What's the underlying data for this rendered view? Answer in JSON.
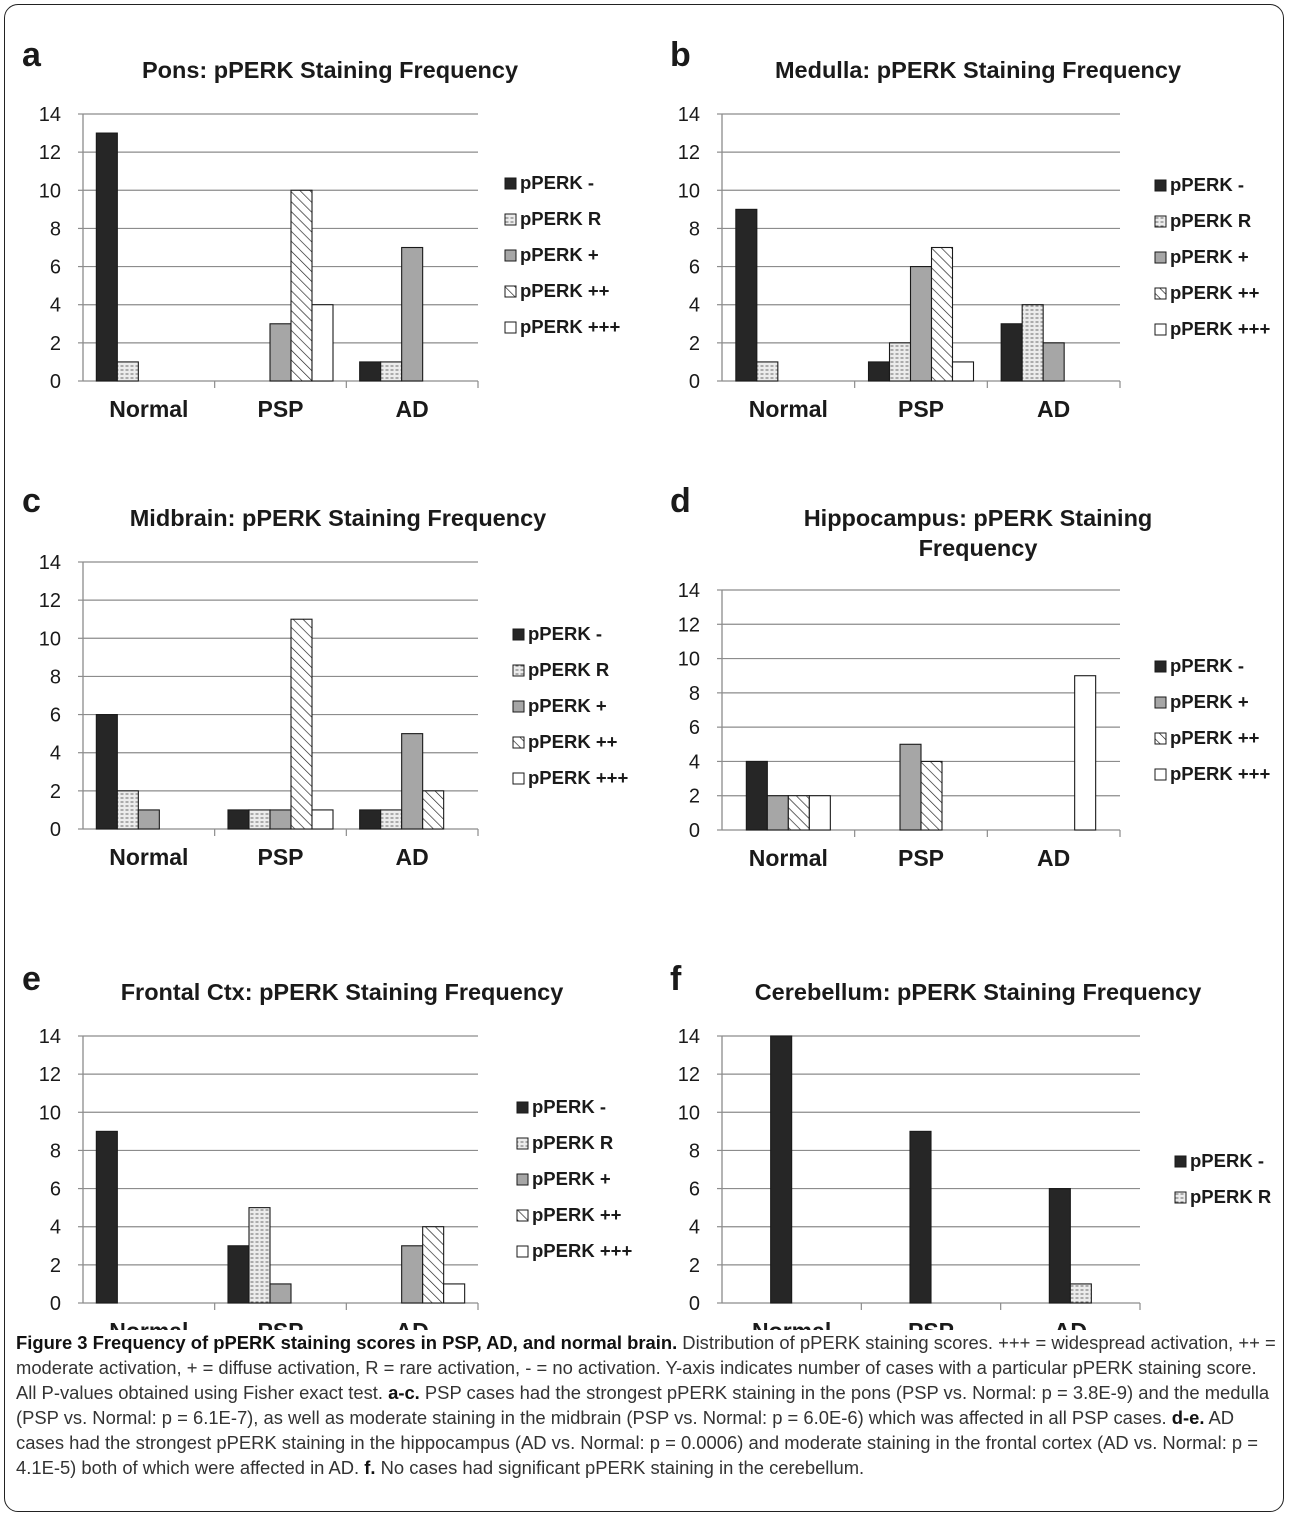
{
  "colors": {
    "neg": "#262626",
    "rare_fill": "#ececec",
    "plus": "#a6a6a6",
    "plusplus_fill": "#ffffff",
    "plusplusplus": "#ffffff",
    "grid": "#8c8c8c",
    "stroke": "#1a1a1a"
  },
  "series_styles": {
    "pPERK -": "solid-dark",
    "pPERK R": "dotted-light",
    "pPERK +": "solid-gray",
    "pPERK ++": "diagonal-hatch",
    "pPERK +++": "white"
  },
  "chart_data": [
    {
      "panel": "a",
      "type": "bar",
      "title": "Pons: pPERK Staining Frequency",
      "categories": [
        "Normal",
        "PSP",
        "AD"
      ],
      "ylim": [
        0,
        14
      ],
      "yticks": [
        "0",
        "2",
        "4",
        "6",
        "8",
        "10",
        "12",
        "14"
      ],
      "grid": true,
      "legend_position": "right",
      "series": [
        {
          "name": "pPERK -",
          "values": [
            13,
            0,
            1
          ]
        },
        {
          "name": "pPERK R",
          "values": [
            1,
            0,
            1
          ]
        },
        {
          "name": "pPERK +",
          "values": [
            0,
            3,
            7
          ]
        },
        {
          "name": "pPERK ++",
          "values": [
            0,
            10,
            0
          ]
        },
        {
          "name": "pPERK +++",
          "values": [
            0,
            4,
            0
          ]
        }
      ]
    },
    {
      "panel": "b",
      "type": "bar",
      "title": "Medulla: pPERK Staining Frequency",
      "categories": [
        "Normal",
        "PSP",
        "AD"
      ],
      "ylim": [
        0,
        14
      ],
      "yticks": [
        "0",
        "2",
        "4",
        "6",
        "8",
        "10",
        "12",
        "14"
      ],
      "grid": true,
      "legend_position": "right",
      "series": [
        {
          "name": "pPERK -",
          "values": [
            9,
            1,
            3
          ]
        },
        {
          "name": "pPERK R",
          "values": [
            1,
            2,
            4
          ]
        },
        {
          "name": "pPERK +",
          "values": [
            0,
            6,
            2
          ]
        },
        {
          "name": "pPERK ++",
          "values": [
            0,
            7,
            0
          ]
        },
        {
          "name": "pPERK +++",
          "values": [
            0,
            1,
            0
          ]
        }
      ]
    },
    {
      "panel": "c",
      "type": "bar",
      "title": "Midbrain: pPERK Staining Frequency",
      "categories": [
        "Normal",
        "PSP",
        "AD"
      ],
      "ylim": [
        0,
        14
      ],
      "yticks": [
        "0",
        "2",
        "4",
        "6",
        "8",
        "10",
        "12",
        "14"
      ],
      "grid": true,
      "legend_position": "right",
      "series": [
        {
          "name": "pPERK -",
          "values": [
            6,
            1,
            1
          ]
        },
        {
          "name": "pPERK R",
          "values": [
            2,
            1,
            1
          ]
        },
        {
          "name": "pPERK +",
          "values": [
            1,
            1,
            5
          ]
        },
        {
          "name": "pPERK ++",
          "values": [
            0,
            11,
            2
          ]
        },
        {
          "name": "pPERK +++",
          "values": [
            0,
            1,
            0
          ]
        }
      ]
    },
    {
      "panel": "d",
      "type": "bar",
      "title": "Hippocampus: pPERK Staining Frequency",
      "title_lines": [
        "Hippocampus: pPERK Staining",
        "Frequency"
      ],
      "categories": [
        "Normal",
        "PSP",
        "AD"
      ],
      "ylim": [
        0,
        14
      ],
      "yticks": [
        "0",
        "2",
        "4",
        "6",
        "8",
        "10",
        "12",
        "14"
      ],
      "grid": true,
      "legend_position": "right",
      "series": [
        {
          "name": "pPERK -",
          "values": [
            4,
            0,
            0
          ]
        },
        {
          "name": "pPERK +",
          "values": [
            2,
            5,
            0
          ]
        },
        {
          "name": "pPERK ++",
          "values": [
            2,
            4,
            0
          ]
        },
        {
          "name": "pPERK +++",
          "values": [
            2,
            0,
            9
          ]
        }
      ]
    },
    {
      "panel": "e",
      "type": "bar",
      "title": "Frontal Ctx: pPERK Staining Frequency",
      "categories": [
        "Normal",
        "PSP",
        "AD"
      ],
      "ylim": [
        0,
        14
      ],
      "yticks": [
        "0",
        "2",
        "4",
        "6",
        "8",
        "10",
        "12",
        "14"
      ],
      "grid": true,
      "legend_position": "right",
      "series": [
        {
          "name": "pPERK -",
          "values": [
            9,
            3,
            0
          ]
        },
        {
          "name": "pPERK R",
          "values": [
            0,
            5,
            0
          ]
        },
        {
          "name": "pPERK +",
          "values": [
            0,
            1,
            3
          ]
        },
        {
          "name": "pPERK ++",
          "values": [
            0,
            0,
            4
          ]
        },
        {
          "name": "pPERK +++",
          "values": [
            0,
            0,
            1
          ]
        }
      ]
    },
    {
      "panel": "f",
      "type": "bar",
      "title": "Cerebellum: pPERK Staining Frequency",
      "categories": [
        "Normal",
        "PSP",
        "AD"
      ],
      "ylim": [
        0,
        14
      ],
      "yticks": [
        "0",
        "2",
        "4",
        "6",
        "8",
        "10",
        "12",
        "14"
      ],
      "grid": true,
      "legend_position": "right",
      "series": [
        {
          "name": "pPERK -",
          "values": [
            14,
            9,
            6
          ]
        },
        {
          "name": "pPERK R",
          "values": [
            0,
            0,
            1
          ]
        }
      ]
    }
  ],
  "caption": {
    "title": "Figure 3 Frequency of pPERK staining scores in PSP, AD, and normal brain.",
    "s1": " Distribution of pPERK staining scores. +++ = widespread activation, ++ = moderate activation, + = diffuse activation, R = rare activation, - = no activation. Y-axis indicates number of cases with a particular pPERK staining score. All P-values obtained using Fisher exact test. ",
    "b1": "a-c.",
    "s2": " PSP cases had the strongest pPERK staining in the pons (PSP vs. Normal: p = 3.8E-9) and the medulla (PSP vs. Normal: p = 6.1E-7), as well as moderate staining in the midbrain (PSP vs. Normal: p = 6.0E-6) which was affected in all PSP cases. ",
    "b2": "d-e.",
    "s3": " AD cases had the strongest pPERK staining in the hippocampus (AD vs. Normal: p = 0.0006) and moderate staining in the frontal cortex (AD vs. Normal: p = 4.1E-5) both of which were affected in AD. ",
    "b3": "f.",
    "s4": " No cases had significant pPERK staining in the cerebellum."
  }
}
